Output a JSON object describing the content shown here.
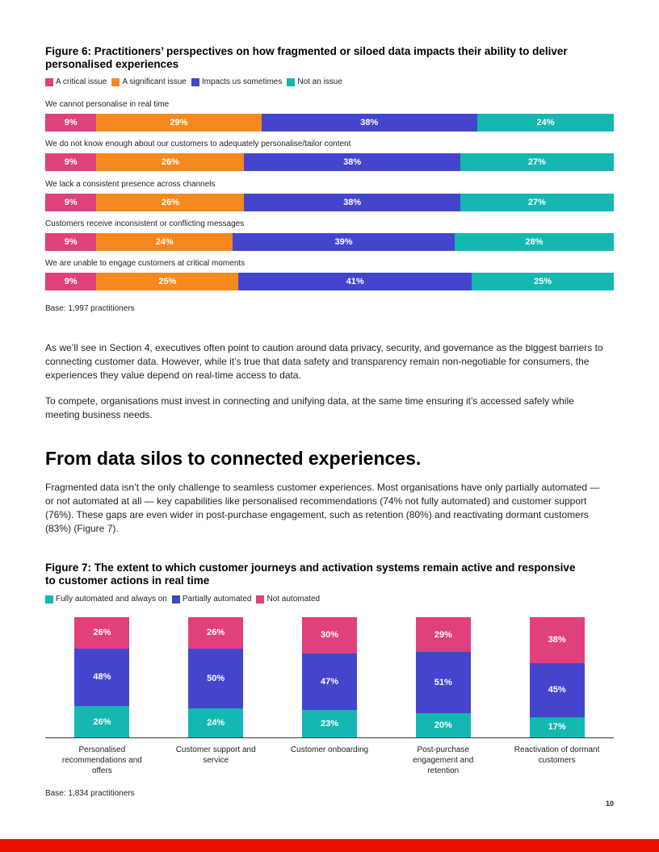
{
  "chart_data": [
    {
      "type": "stacked_bar",
      "orientation": "horizontal",
      "title": "Figure 6: Practitioners’ perspectives on how fragmented or siloed data impacts their ability to deliver personalised experiences",
      "categories": [
        "We cannot personalise in real time",
        "We do not know enough about our customers to adequately personalise/tailor content",
        "We lack a consistent presence across channels",
        "Customers receive inconsistent or conflicting messages",
        "We are unable to engage customers at critical moments"
      ],
      "xlim": [
        0,
        100
      ],
      "series": [
        {
          "name": "A critical issue",
          "color": "#e0407b",
          "values": [
            9,
            9,
            9,
            9,
            9
          ],
          "value_labels": [
            "9%",
            "9%",
            "9%",
            "9%",
            "9%"
          ]
        },
        {
          "name": "A significant issue",
          "color": "#f5891f",
          "values": [
            29,
            26,
            26,
            24,
            25
          ],
          "value_labels": [
            "29%",
            "26%",
            "26%",
            "24%",
            "25%"
          ]
        },
        {
          "name": "Impacts us sometimes",
          "color": "#4444cc",
          "values": [
            38,
            38,
            38,
            39,
            41
          ],
          "value_labels": [
            "38%",
            "38%",
            "38%",
            "39%",
            "41%"
          ]
        },
        {
          "name": "Not an issue",
          "color": "#14b8b0",
          "values": [
            24,
            27,
            27,
            28,
            25
          ],
          "value_labels": [
            "24%",
            "27%",
            "27%",
            "28%",
            "25%"
          ]
        }
      ],
      "note": "Base: 1,997 practitioners"
    },
    {
      "type": "stacked_bar",
      "orientation": "vertical",
      "title": "Figure 7: The extent to which customer journeys and activation systems remain active and responsive to customer actions in real time",
      "categories": [
        "Personalised recommendations and offers",
        "Customer support and service",
        "Customer onboarding",
        "Post-purchase engagement and retention",
        "Reactivation of dormant customers"
      ],
      "ylim": [
        0,
        100
      ],
      "series": [
        {
          "name": "Fully automated and always on",
          "color": "#14b8b0",
          "values": [
            26,
            24,
            23,
            20,
            17
          ],
          "value_labels": [
            "26%",
            "24%",
            "23%",
            "20%",
            "17%"
          ]
        },
        {
          "name": "Partially automated",
          "color": "#4444cc",
          "values": [
            48,
            50,
            47,
            51,
            45
          ],
          "value_labels": [
            "48%",
            "50%",
            "47%",
            "51%",
            "45%"
          ]
        },
        {
          "name": "Not automated",
          "color": "#e0407b",
          "values": [
            26,
            26,
            30,
            29,
            38
          ],
          "value_labels": [
            "26%",
            "26%",
            "30%",
            "29%",
            "38%"
          ]
        }
      ],
      "note": "Base: 1,834 practitioners"
    }
  ],
  "doc": {
    "paragraphs": [
      "As we’ll see in Section 4, executives often point to caution around data privacy, security, and governance as the biggest barriers to connecting customer data. However, while it’s true that data safety and transparency remain non-negotiable for consumers, the experiences they value depend on real-time access to data.",
      "To compete, organisations must invest in connecting and unifying data, at the same time ensuring it’s accessed safely while meeting business needs."
    ],
    "heading": "From data silos to connected experiences.",
    "paragraph3": "Fragmented data isn’t the only challenge to seamless customer experiences. Most organisations have only partially automated — or not automated at all — key capabilities like personalised recommendations (74% not fully automated) and customer support (76%). These gaps are even wider in post-purchase engagement, such as retention (80%) and reactivating dormant customers (83%) (Figure 7).",
    "page_number": 10
  }
}
